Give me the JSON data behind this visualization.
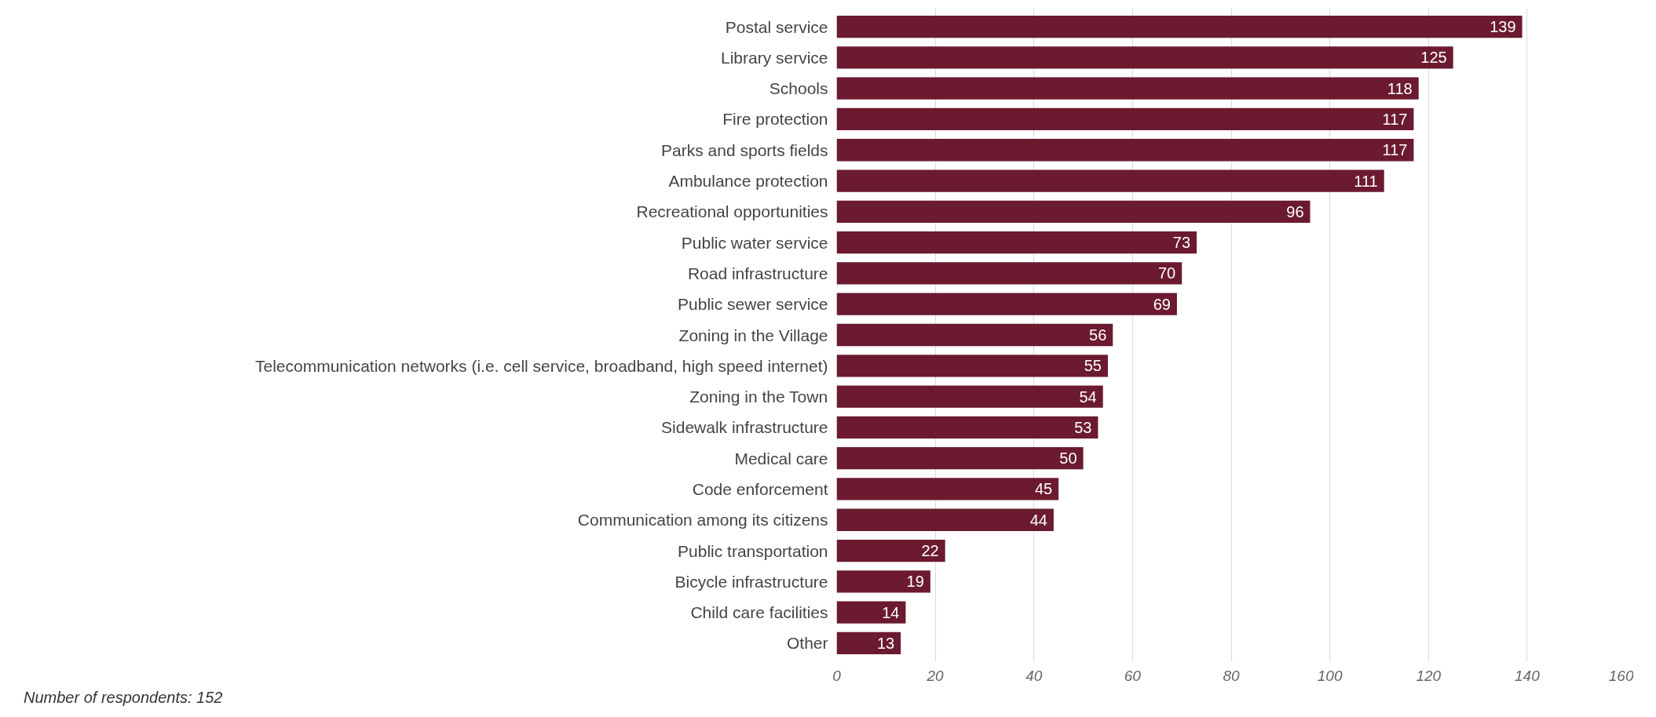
{
  "chart_data": {
    "type": "bar",
    "orientation": "horizontal",
    "categories": [
      "Postal service",
      "Library service",
      "Schools",
      "Fire protection",
      "Parks and sports fields",
      "Ambulance protection",
      "Recreational opportunities",
      "Public water service",
      "Road infrastructure",
      "Public sewer service",
      "Zoning in the Village",
      "Telecommunication networks (i.e. cell service, broadband, high speed internet)",
      "Zoning in the Town",
      "Sidewalk infrastructure",
      "Medical care",
      "Code enforcement",
      "Communication among its citizens",
      "Public transportation",
      "Bicycle infrastructure",
      "Child care facilities",
      "Other"
    ],
    "values": [
      139,
      125,
      118,
      117,
      117,
      111,
      96,
      73,
      70,
      69,
      56,
      55,
      54,
      53,
      50,
      45,
      44,
      22,
      19,
      14,
      13
    ],
    "color": "#6b1a30",
    "xlim": [
      0,
      160
    ],
    "xticks": [
      0,
      20,
      40,
      60,
      80,
      100,
      120,
      140,
      160
    ],
    "grid": "x",
    "data_labels": true,
    "annotations": [
      "Number of respondents: 152"
    ]
  }
}
